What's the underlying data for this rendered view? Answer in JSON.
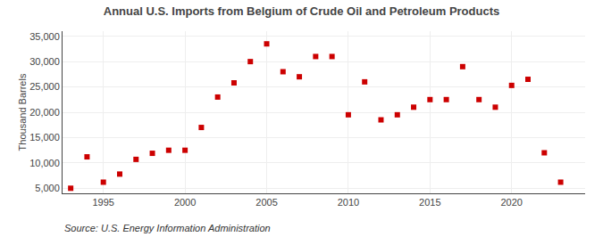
{
  "chart_data": {
    "type": "scatter",
    "title": "Annual U.S. Imports from Belgium of Crude Oil and Petroleum Products",
    "y_label": "Thousand Barrels",
    "annotations": [
      "Source: U.S. Energy Information Administration"
    ],
    "x": [
      1993,
      1994,
      1995,
      1996,
      1997,
      1998,
      1999,
      2000,
      2001,
      2002,
      2003,
      2004,
      2005,
      2006,
      2007,
      2008,
      2009,
      2010,
      2011,
      2012,
      2013,
      2014,
      2015,
      2016,
      2017,
      2018,
      2019,
      2020,
      2021,
      2022,
      2023
    ],
    "values": [
      5000,
      11200,
      6200,
      7800,
      10700,
      11900,
      12500,
      12500,
      17000,
      23000,
      25800,
      30000,
      33500,
      28000,
      27000,
      31000,
      31000,
      19500,
      26000,
      18500,
      19500,
      21000,
      22500,
      22500,
      29000,
      22500,
      21000,
      25300,
      26500,
      12000,
      6200
    ],
    "color": "#cc0000",
    "marker": "square",
    "xlim": [
      1992.5,
      2024.5
    ],
    "xticks": [
      1995,
      2000,
      2005,
      2010,
      2015,
      2020
    ],
    "ylim": [
      4000,
      36000
    ],
    "yticks": [
      {
        "value": 5000,
        "label": "5,000"
      },
      {
        "value": 10000,
        "label": "10,000"
      },
      {
        "value": 15000,
        "label": "15,000"
      },
      {
        "value": 20000,
        "label": "20,000"
      },
      {
        "value": 25000,
        "label": "25,000"
      },
      {
        "value": 30000,
        "label": "30,000"
      },
      {
        "value": 35000,
        "label": "35,000"
      }
    ],
    "grid": true
  }
}
